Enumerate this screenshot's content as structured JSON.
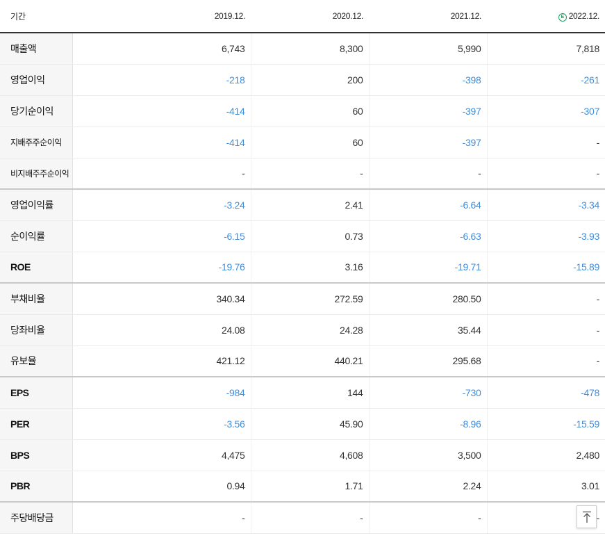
{
  "header": {
    "period_label": "기간",
    "periods": [
      "2019.12.",
      "2020.12.",
      "2021.12.",
      "2022.12."
    ],
    "estimate_badge": "E"
  },
  "rows": [
    {
      "label": "매출액",
      "values": [
        "6,743",
        "8,300",
        "5,990",
        "7,818"
      ],
      "neg": [
        false,
        false,
        false,
        false
      ]
    },
    {
      "label": "영업이익",
      "values": [
        "-218",
        "200",
        "-398",
        "-261"
      ],
      "neg": [
        true,
        false,
        true,
        true
      ]
    },
    {
      "label": "당기순이익",
      "values": [
        "-414",
        "60",
        "-397",
        "-307"
      ],
      "neg": [
        true,
        false,
        true,
        true
      ]
    },
    {
      "label": "지배주주순이익",
      "values": [
        "-414",
        "60",
        "-397",
        "-"
      ],
      "neg": [
        true,
        false,
        true,
        false
      ]
    },
    {
      "label": "비지배주주순이익",
      "values": [
        "-",
        "-",
        "-",
        "-"
      ],
      "neg": [
        false,
        false,
        false,
        false
      ]
    },
    {
      "label": "영업이익률",
      "values": [
        "-3.24",
        "2.41",
        "-6.64",
        "-3.34"
      ],
      "neg": [
        true,
        false,
        true,
        true
      ]
    },
    {
      "label": "순이익률",
      "values": [
        "-6.15",
        "0.73",
        "-6.63",
        "-3.93"
      ],
      "neg": [
        true,
        false,
        true,
        true
      ]
    },
    {
      "label": "ROE",
      "values": [
        "-19.76",
        "3.16",
        "-19.71",
        "-15.89"
      ],
      "neg": [
        true,
        false,
        true,
        true
      ]
    },
    {
      "label": "부채비율",
      "values": [
        "340.34",
        "272.59",
        "280.50",
        "-"
      ],
      "neg": [
        false,
        false,
        false,
        false
      ]
    },
    {
      "label": "당좌비율",
      "values": [
        "24.08",
        "24.28",
        "35.44",
        "-"
      ],
      "neg": [
        false,
        false,
        false,
        false
      ]
    },
    {
      "label": "유보율",
      "values": [
        "421.12",
        "440.21",
        "295.68",
        "-"
      ],
      "neg": [
        false,
        false,
        false,
        false
      ]
    },
    {
      "label": "EPS",
      "values": [
        "-984",
        "144",
        "-730",
        "-478"
      ],
      "neg": [
        true,
        false,
        true,
        true
      ]
    },
    {
      "label": "PER",
      "values": [
        "-3.56",
        "45.90",
        "-8.96",
        "-15.59"
      ],
      "neg": [
        true,
        false,
        true,
        true
      ]
    },
    {
      "label": "BPS",
      "values": [
        "4,475",
        "4,608",
        "3,500",
        "2,480"
      ],
      "neg": [
        false,
        false,
        false,
        false
      ]
    },
    {
      "label": "PBR",
      "values": [
        "0.94",
        "1.71",
        "2.24",
        "3.01"
      ],
      "neg": [
        false,
        false,
        false,
        false
      ]
    },
    {
      "label": "주당배당금",
      "values": [
        "-",
        "-",
        "-",
        "-"
      ],
      "neg": [
        false,
        false,
        false,
        false
      ]
    }
  ],
  "colors": {
    "negative": "#3e8ede",
    "estimate": "#1aa260",
    "label_bg": "#f6f6f6"
  },
  "icons": {
    "scroll_top": "arrow-up-icon"
  }
}
